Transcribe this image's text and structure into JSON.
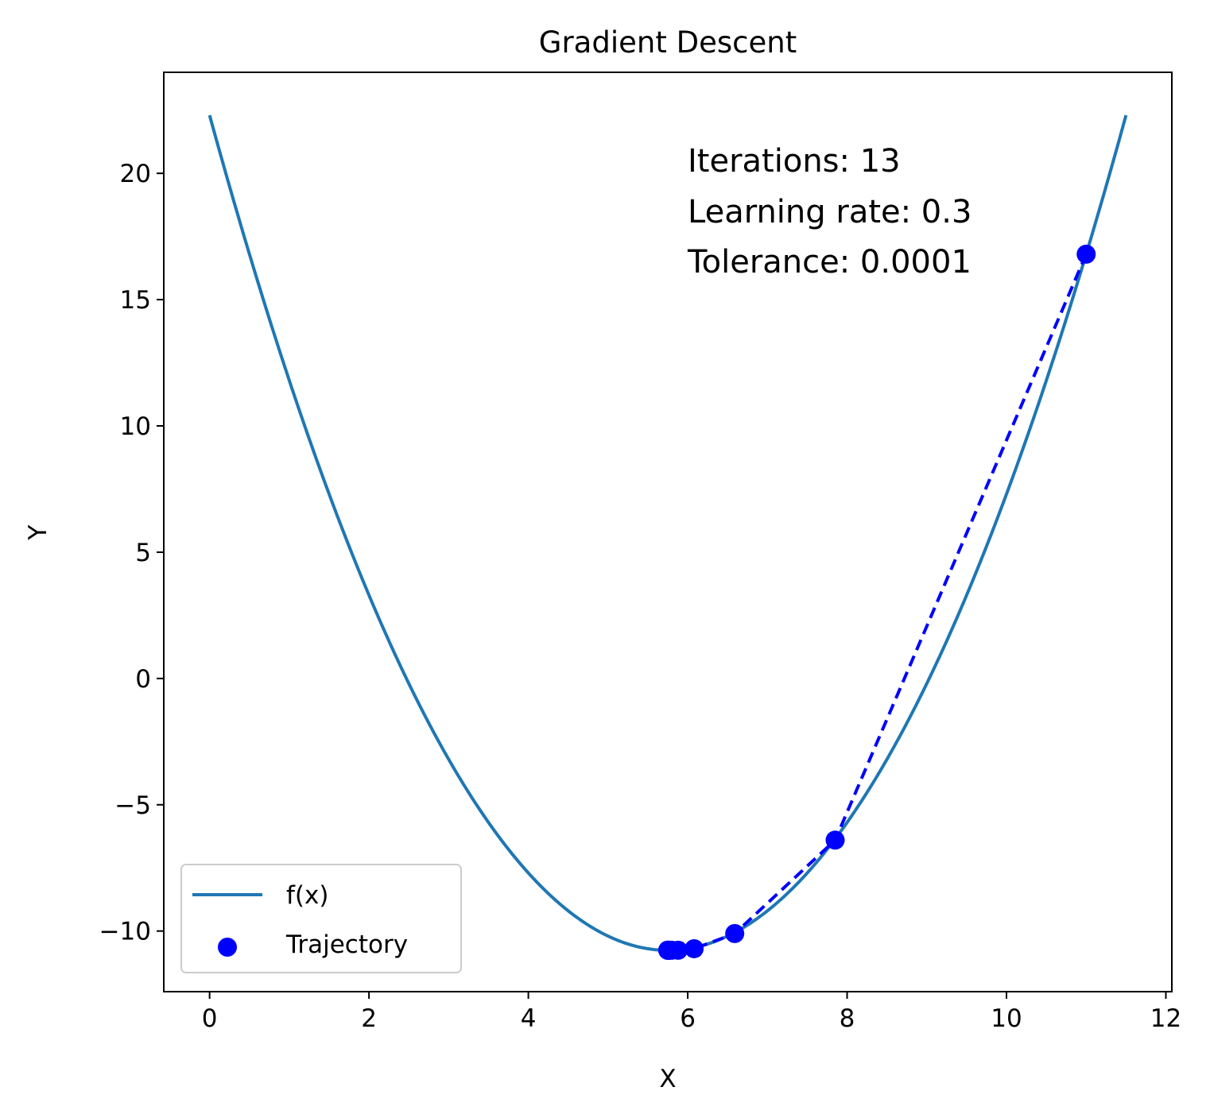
{
  "chart_data": {
    "type": "line",
    "title": "Gradient Descent",
    "xlabel": "X",
    "ylabel": "Y",
    "xlim": [
      -0.575,
      12.075
    ],
    "ylim": [
      -12.4,
      24.0
    ],
    "xticks": [
      0,
      2,
      4,
      6,
      8,
      10,
      12
    ],
    "xtick_labels": [
      "0",
      "2",
      "4",
      "6",
      "8",
      "10",
      "12"
    ],
    "yticks": [
      -10,
      -5,
      0,
      5,
      10,
      15,
      20
    ],
    "ytick_labels": [
      "−10",
      "−5",
      "0",
      "5",
      "10",
      "15",
      "20"
    ],
    "grid": false,
    "legend_position": "lower-left",
    "annotations": [
      "Iterations: 13",
      "Learning rate: 0.3",
      "Tolerance: 0.0001"
    ],
    "curve": {
      "name": "f(x)",
      "color": "#1f77b4",
      "function": "x^2 - 11.5x + 22.3",
      "x_range": [
        0,
        11.5
      ]
    },
    "series": [
      {
        "name": "Trajectory",
        "color": "#0000ff",
        "style": "dashed-with-markers",
        "x": [
          11.0,
          7.85,
          6.59,
          6.08,
          5.88,
          5.8,
          5.77,
          5.76,
          5.755,
          5.752,
          5.751,
          5.7505,
          5.7502,
          5.7501
        ],
        "y": [
          16.8,
          -6.4,
          -10.1,
          -10.7,
          -10.76,
          -10.76,
          -10.76,
          -10.76,
          -10.76,
          -10.76,
          -10.76,
          -10.76,
          -10.76,
          -10.76
        ]
      }
    ]
  }
}
